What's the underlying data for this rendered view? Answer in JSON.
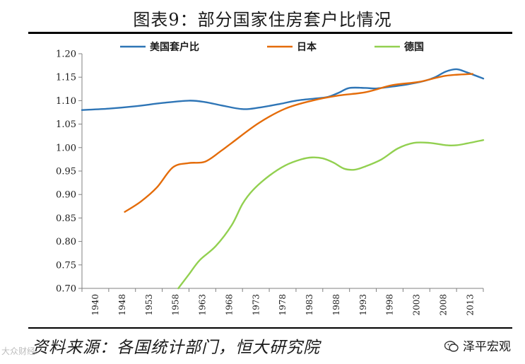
{
  "header": {
    "title": "图表9：部分国家住房套户比情况"
  },
  "footer": {
    "source": "资料来源：各国统计部门，恒大研究院",
    "brand": "泽平宏观",
    "watermark": "大众财经"
  },
  "chart_data": {
    "type": "line",
    "title": "图表9：部分国家住房套户比情况",
    "xlabel": "",
    "ylabel": "",
    "xlim": [
      1940,
      2015
    ],
    "ylim": [
      0.7,
      1.2
    ],
    "yticks": [
      "0.70",
      "0.75",
      "0.80",
      "0.85",
      "0.90",
      "0.95",
      "1.00",
      "1.05",
      "1.10",
      "1.15",
      "1.20"
    ],
    "xticks": [
      "1940",
      "1948",
      "1953",
      "1958",
      "1963",
      "1968",
      "1973",
      "1978",
      "1983",
      "1988",
      "1993",
      "1998",
      "2003",
      "2008",
      "2013"
    ],
    "grid": false,
    "legend": "top",
    "series": [
      {
        "name": "美国套户比",
        "color": "#2E75B6",
        "points": [
          [
            1940,
            1.08
          ],
          [
            1945,
            1.083
          ],
          [
            1950,
            1.088
          ],
          [
            1955,
            1.095
          ],
          [
            1960,
            1.1
          ],
          [
            1963,
            1.097
          ],
          [
            1966,
            1.09
          ],
          [
            1970,
            1.082
          ],
          [
            1973,
            1.085
          ],
          [
            1977,
            1.093
          ],
          [
            1980,
            1.1
          ],
          [
            1984,
            1.105
          ],
          [
            1986,
            1.108
          ],
          [
            1988,
            1.117
          ],
          [
            1990,
            1.127
          ],
          [
            1993,
            1.127
          ],
          [
            1995,
            1.126
          ],
          [
            1998,
            1.13
          ],
          [
            2001,
            1.135
          ],
          [
            2004,
            1.142
          ],
          [
            2006,
            1.15
          ],
          [
            2008,
            1.162
          ],
          [
            2010,
            1.167
          ],
          [
            2012,
            1.16
          ],
          [
            2015,
            1.147
          ]
        ]
      },
      {
        "name": "日本",
        "color": "#E46C0A",
        "points": [
          [
            1948,
            0.863
          ],
          [
            1951,
            0.885
          ],
          [
            1954,
            0.915
          ],
          [
            1957,
            0.958
          ],
          [
            1960,
            0.967
          ],
          [
            1963,
            0.97
          ],
          [
            1966,
            0.993
          ],
          [
            1968,
            1.01
          ],
          [
            1973,
            1.052
          ],
          [
            1978,
            1.083
          ],
          [
            1983,
            1.1
          ],
          [
            1988,
            1.111
          ],
          [
            1993,
            1.118
          ],
          [
            1998,
            1.133
          ],
          [
            2003,
            1.14
          ],
          [
            2008,
            1.153
          ],
          [
            2013,
            1.157
          ]
        ]
      },
      {
        "name": "德国",
        "color": "#92D050",
        "points": [
          [
            1958,
            0.7
          ],
          [
            1960,
            0.73
          ],
          [
            1962,
            0.76
          ],
          [
            1965,
            0.79
          ],
          [
            1968,
            0.835
          ],
          [
            1970,
            0.88
          ],
          [
            1972,
            0.91
          ],
          [
            1975,
            0.94
          ],
          [
            1978,
            0.962
          ],
          [
            1981,
            0.975
          ],
          [
            1983,
            0.979
          ],
          [
            1985,
            0.977
          ],
          [
            1987,
            0.968
          ],
          [
            1989,
            0.955
          ],
          [
            1991,
            0.953
          ],
          [
            1993,
            0.96
          ],
          [
            1996,
            0.975
          ],
          [
            1999,
            0.998
          ],
          [
            2002,
            1.01
          ],
          [
            2005,
            1.01
          ],
          [
            2008,
            1.005
          ],
          [
            2010,
            1.005
          ],
          [
            2012,
            1.009
          ],
          [
            2015,
            1.016
          ]
        ]
      }
    ]
  }
}
